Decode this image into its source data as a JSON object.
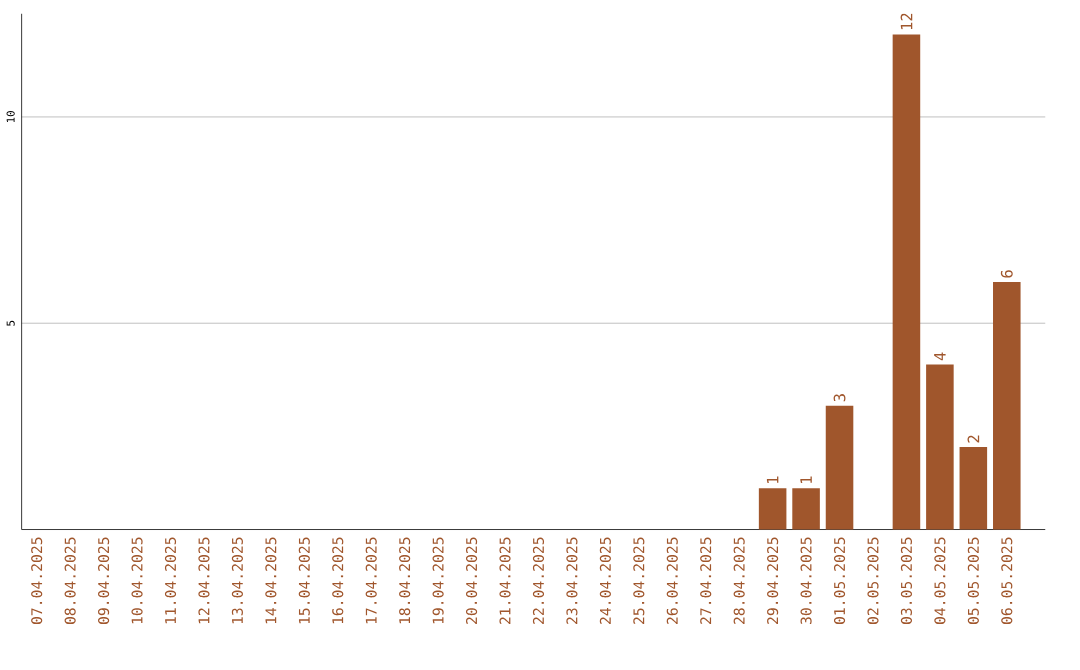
{
  "chart_data": {
    "type": "bar",
    "categories": [
      "07.04.2025",
      "08.04.2025",
      "09.04.2025",
      "10.04.2025",
      "11.04.2025",
      "12.04.2025",
      "13.04.2025",
      "14.04.2025",
      "15.04.2025",
      "16.04.2025",
      "17.04.2025",
      "18.04.2025",
      "19.04.2025",
      "20.04.2025",
      "21.04.2025",
      "22.04.2025",
      "23.04.2025",
      "24.04.2025",
      "25.04.2025",
      "26.04.2025",
      "27.04.2025",
      "28.04.2025",
      "29.04.2025",
      "30.04.2025",
      "01.05.2025",
      "02.05.2025",
      "03.05.2025",
      "04.05.2025",
      "05.05.2025",
      "06.05.2025"
    ],
    "values": [
      0,
      0,
      0,
      0,
      0,
      0,
      0,
      0,
      0,
      0,
      0,
      0,
      0,
      0,
      0,
      0,
      0,
      0,
      0,
      0,
      0,
      0,
      1,
      1,
      3,
      0,
      12,
      4,
      2,
      6
    ],
    "value_labels": [
      null,
      null,
      null,
      null,
      null,
      null,
      null,
      null,
      null,
      null,
      null,
      null,
      null,
      null,
      null,
      null,
      null,
      null,
      null,
      null,
      null,
      null,
      "1",
      "1",
      "3",
      null,
      "12",
      "4",
      "2",
      "6"
    ],
    "color": "#a0562c",
    "ylim": [
      0,
      12.5
    ],
    "yticks": [
      5,
      10
    ],
    "grid": "y"
  }
}
